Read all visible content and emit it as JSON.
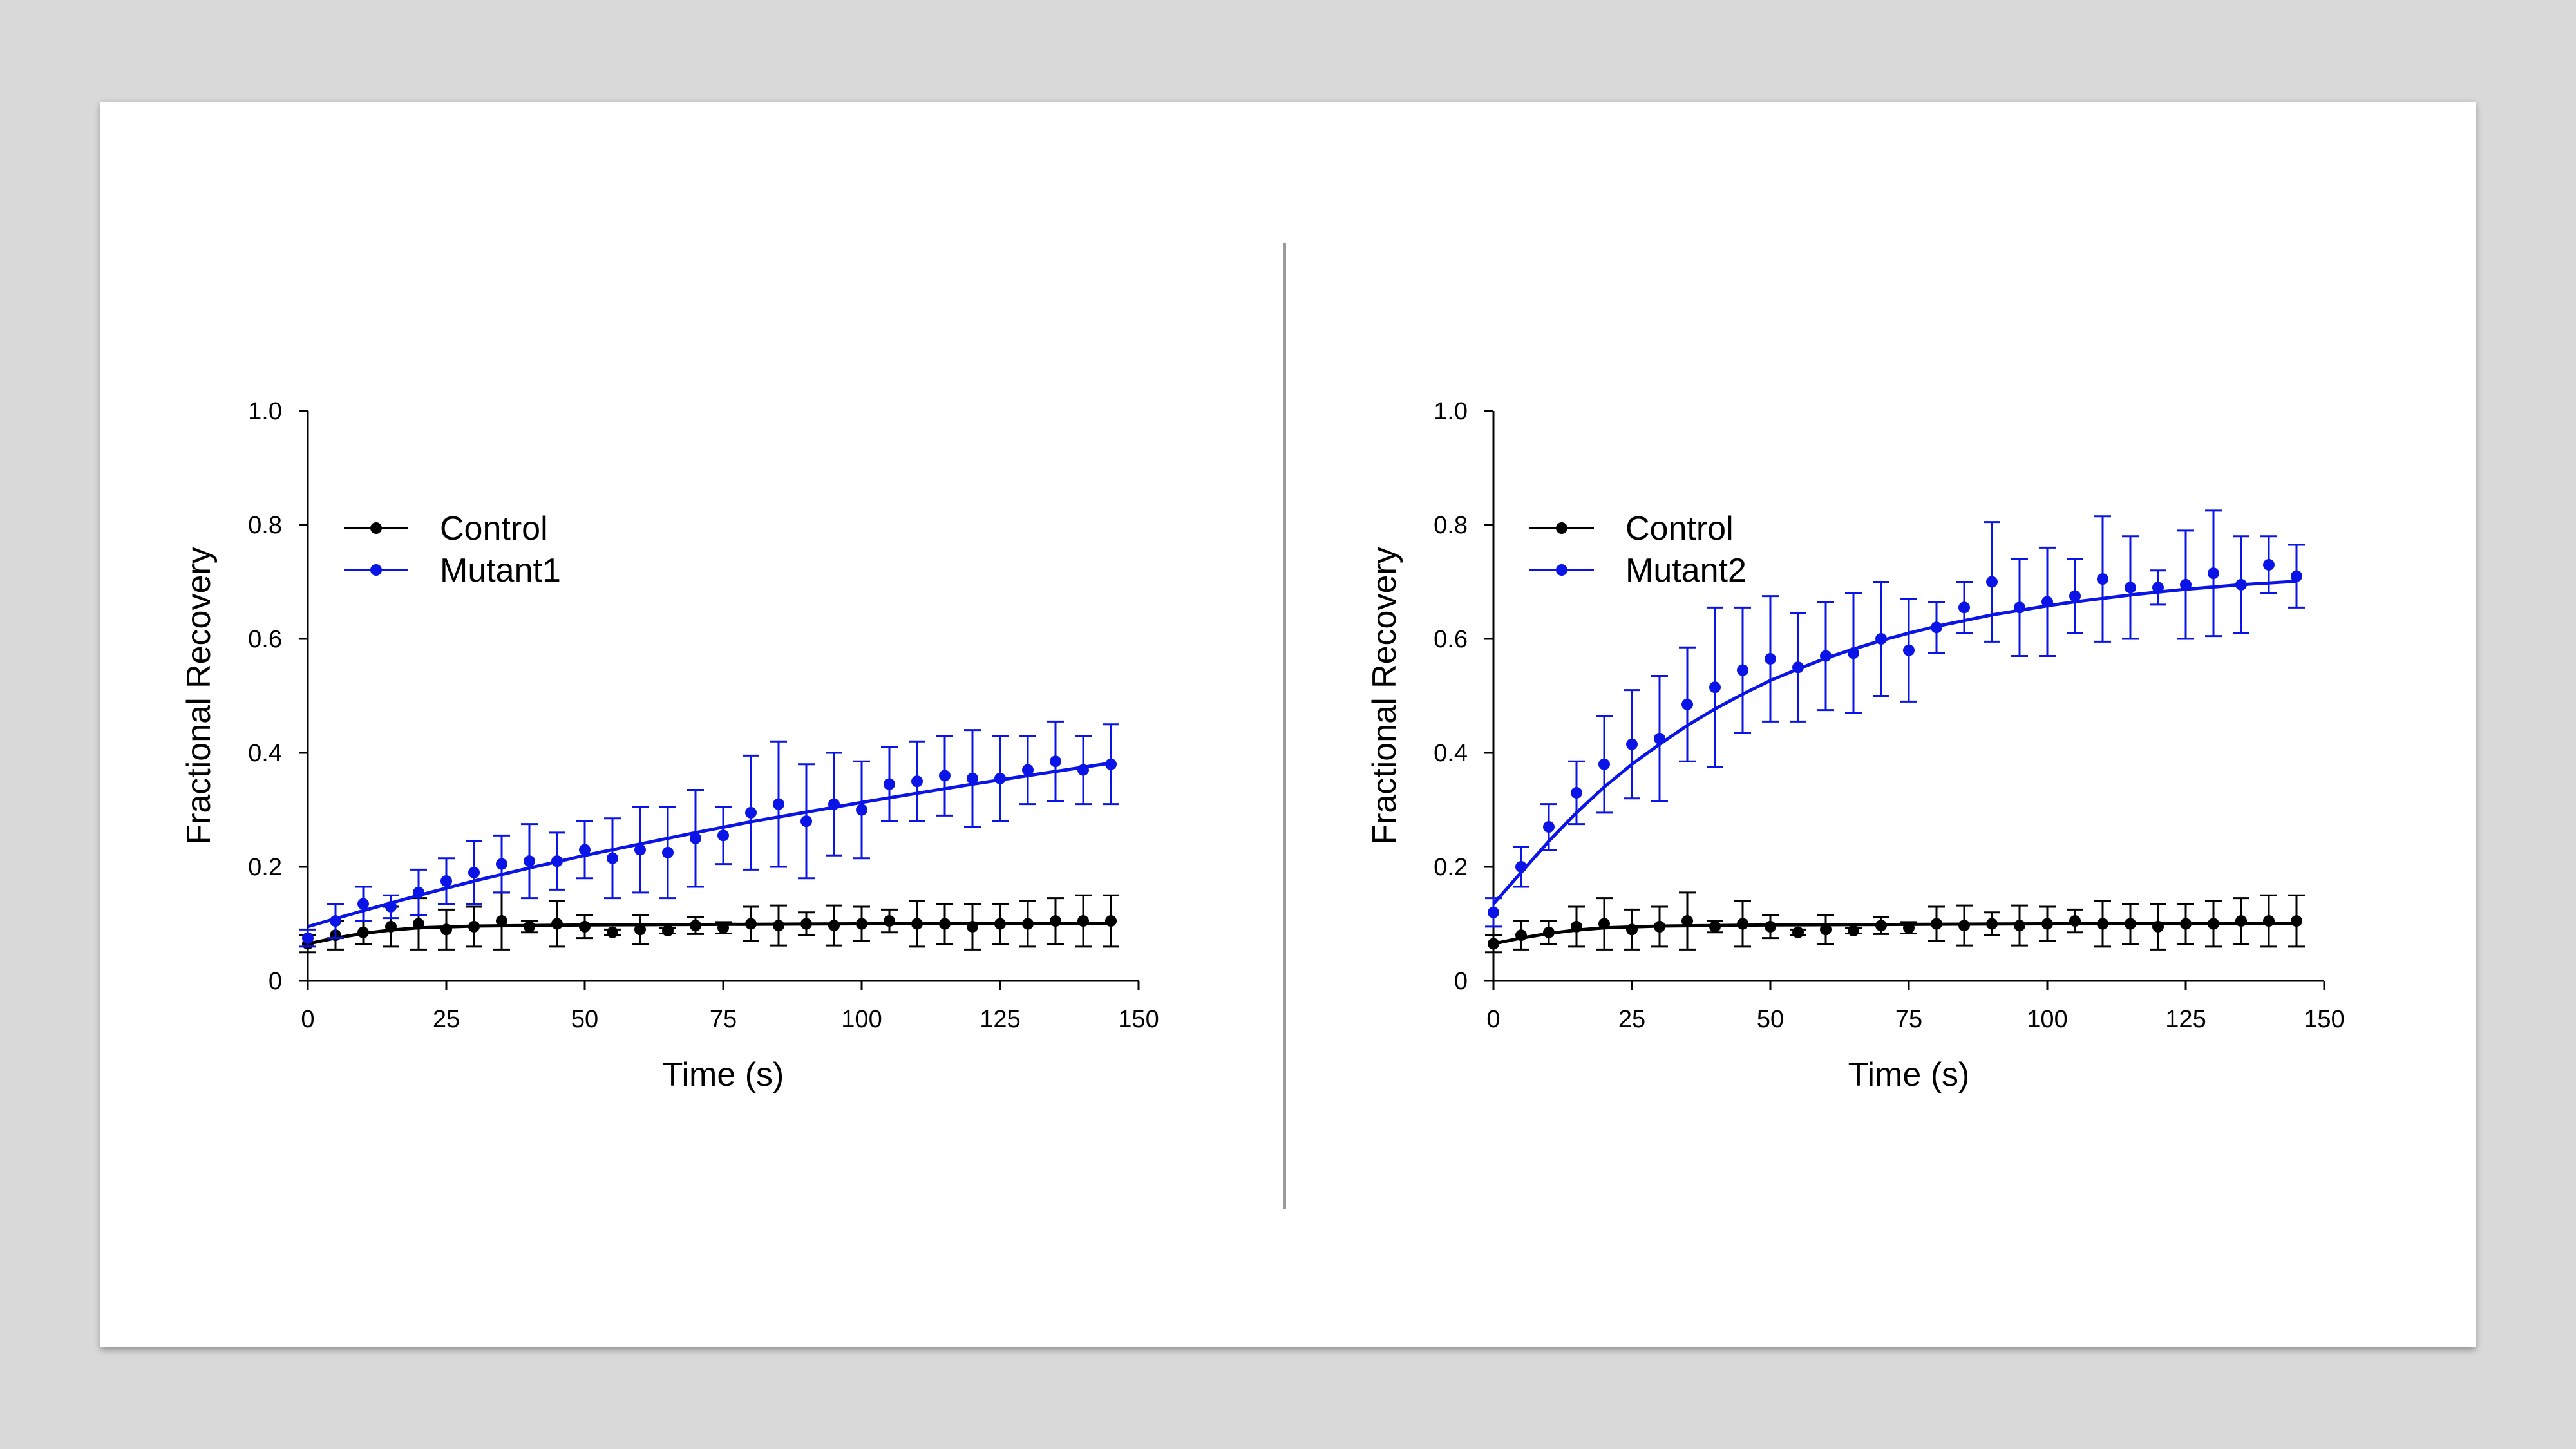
{
  "chart_data": [
    {
      "type": "scatter",
      "xlabel": "Time (s)",
      "ylabel": "Fractional Recovery",
      "xlim": [
        0,
        150
      ],
      "ylim": [
        0,
        1.0
      ],
      "xticks": [
        0,
        25,
        50,
        75,
        100,
        125,
        150
      ],
      "yticks": [
        "0",
        "0.2",
        "0.4",
        "0.6",
        "0.8",
        "1.0"
      ],
      "legend_position": "top-left",
      "x": [
        0,
        5,
        10,
        15,
        20,
        25,
        30,
        35,
        40,
        45,
        50,
        55,
        60,
        65,
        70,
        75,
        80,
        85,
        90,
        95,
        100,
        105,
        110,
        115,
        120,
        125,
        130,
        135,
        140,
        145
      ],
      "series": [
        {
          "name": "Control",
          "color": "#000000",
          "values": [
            0.065,
            0.08,
            0.085,
            0.095,
            0.1,
            0.09,
            0.095,
            0.105,
            0.095,
            0.1,
            0.095,
            0.085,
            0.09,
            0.088,
            0.097,
            0.093,
            0.1,
            0.097,
            0.1,
            0.097,
            0.1,
            0.105,
            0.1,
            0.1,
            0.095,
            0.1,
            0.1,
            0.105,
            0.105,
            0.105
          ],
          "errors": [
            0.015,
            0.025,
            0.02,
            0.035,
            0.045,
            0.035,
            0.035,
            0.05,
            0.01,
            0.04,
            0.02,
            0.005,
            0.025,
            0.005,
            0.015,
            0.01,
            0.03,
            0.035,
            0.02,
            0.035,
            0.03,
            0.02,
            0.04,
            0.035,
            0.04,
            0.035,
            0.04,
            0.04,
            0.045,
            0.045
          ],
          "fit": [
            [
              0,
              0.065
            ],
            [
              5,
              0.075
            ],
            [
              10,
              0.083
            ],
            [
              15,
              0.089
            ],
            [
              20,
              0.093
            ],
            [
              30,
              0.096
            ],
            [
              50,
              0.098
            ],
            [
              75,
              0.099
            ],
            [
              100,
              0.1
            ],
            [
              145,
              0.101
            ]
          ]
        },
        {
          "name": "Mutant1",
          "color": "#0a14e6",
          "values": [
            0.075,
            0.105,
            0.135,
            0.13,
            0.155,
            0.175,
            0.19,
            0.205,
            0.21,
            0.21,
            0.23,
            0.215,
            0.23,
            0.225,
            0.25,
            0.255,
            0.295,
            0.31,
            0.28,
            0.31,
            0.3,
            0.345,
            0.35,
            0.36,
            0.355,
            0.355,
            0.37,
            0.385,
            0.37,
            0.38
          ],
          "errors": [
            0.015,
            0.03,
            0.03,
            0.02,
            0.04,
            0.04,
            0.055,
            0.05,
            0.065,
            0.05,
            0.05,
            0.07,
            0.075,
            0.08,
            0.085,
            0.05,
            0.1,
            0.11,
            0.1,
            0.09,
            0.085,
            0.065,
            0.07,
            0.07,
            0.085,
            0.075,
            0.06,
            0.07,
            0.06,
            0.07
          ],
          "fit": [
            [
              0,
              0.095
            ],
            [
              10,
              0.123
            ],
            [
              20,
              0.15
            ],
            [
              30,
              0.175
            ],
            [
              40,
              0.198
            ],
            [
              50,
              0.22
            ],
            [
              60,
              0.24
            ],
            [
              70,
              0.26
            ],
            [
              80,
              0.279
            ],
            [
              90,
              0.296
            ],
            [
              100,
              0.313
            ],
            [
              110,
              0.329
            ],
            [
              120,
              0.345
            ],
            [
              130,
              0.36
            ],
            [
              145,
              0.382
            ]
          ]
        }
      ]
    },
    {
      "type": "scatter",
      "xlabel": "Time (s)",
      "ylabel": "Fractional Recovery",
      "xlim": [
        0,
        150
      ],
      "ylim": [
        0,
        1.0
      ],
      "xticks": [
        0,
        25,
        50,
        75,
        100,
        125,
        150
      ],
      "yticks": [
        "0",
        "0.2",
        "0.4",
        "0.6",
        "0.8",
        "1.0"
      ],
      "legend_position": "top-left",
      "x": [
        0,
        5,
        10,
        15,
        20,
        25,
        30,
        35,
        40,
        45,
        50,
        55,
        60,
        65,
        70,
        75,
        80,
        85,
        90,
        95,
        100,
        105,
        110,
        115,
        120,
        125,
        130,
        135,
        140,
        145
      ],
      "series": [
        {
          "name": "Control",
          "color": "#000000",
          "values": [
            0.065,
            0.08,
            0.085,
            0.095,
            0.1,
            0.09,
            0.095,
            0.105,
            0.095,
            0.1,
            0.095,
            0.085,
            0.09,
            0.088,
            0.097,
            0.093,
            0.1,
            0.097,
            0.1,
            0.097,
            0.1,
            0.105,
            0.1,
            0.1,
            0.095,
            0.1,
            0.1,
            0.105,
            0.105,
            0.105
          ],
          "errors": [
            0.015,
            0.025,
            0.02,
            0.035,
            0.045,
            0.035,
            0.035,
            0.05,
            0.01,
            0.04,
            0.02,
            0.005,
            0.025,
            0.005,
            0.015,
            0.01,
            0.03,
            0.035,
            0.02,
            0.035,
            0.03,
            0.02,
            0.04,
            0.035,
            0.04,
            0.035,
            0.04,
            0.04,
            0.045,
            0.045
          ],
          "fit": [
            [
              0,
              0.065
            ],
            [
              5,
              0.075
            ],
            [
              10,
              0.083
            ],
            [
              15,
              0.089
            ],
            [
              20,
              0.093
            ],
            [
              30,
              0.096
            ],
            [
              50,
              0.098
            ],
            [
              75,
              0.099
            ],
            [
              100,
              0.1
            ],
            [
              145,
              0.101
            ]
          ]
        },
        {
          "name": "Mutant2",
          "color": "#0a14e6",
          "values": [
            0.12,
            0.2,
            0.27,
            0.33,
            0.38,
            0.415,
            0.425,
            0.485,
            0.515,
            0.545,
            0.565,
            0.55,
            0.57,
            0.575,
            0.6,
            0.58,
            0.62,
            0.655,
            0.7,
            0.655,
            0.665,
            0.675,
            0.705,
            0.69,
            0.69,
            0.695,
            0.715,
            0.695,
            0.73,
            0.71
          ],
          "errors": [
            0.025,
            0.035,
            0.04,
            0.055,
            0.085,
            0.095,
            0.11,
            0.1,
            0.14,
            0.11,
            0.11,
            0.095,
            0.095,
            0.105,
            0.1,
            0.09,
            0.045,
            0.045,
            0.105,
            0.085,
            0.095,
            0.065,
            0.11,
            0.09,
            0.03,
            0.095,
            0.11,
            0.085,
            0.05,
            0.055
          ],
          "fit": [
            [
              0,
              0.135
            ],
            [
              5,
              0.19
            ],
            [
              10,
              0.245
            ],
            [
              15,
              0.295
            ],
            [
              20,
              0.34
            ],
            [
              25,
              0.38
            ],
            [
              30,
              0.415
            ],
            [
              35,
              0.448
            ],
            [
              40,
              0.477
            ],
            [
              45,
              0.503
            ],
            [
              50,
              0.527
            ],
            [
              55,
              0.547
            ],
            [
              60,
              0.566
            ],
            [
              65,
              0.582
            ],
            [
              70,
              0.597
            ],
            [
              75,
              0.61
            ],
            [
              80,
              0.622
            ],
            [
              85,
              0.632
            ],
            [
              90,
              0.642
            ],
            [
              95,
              0.65
            ],
            [
              100,
              0.658
            ],
            [
              105,
              0.665
            ],
            [
              110,
              0.671
            ],
            [
              115,
              0.677
            ],
            [
              120,
              0.682
            ],
            [
              125,
              0.687
            ],
            [
              130,
              0.691
            ],
            [
              135,
              0.695
            ],
            [
              140,
              0.698
            ],
            [
              145,
              0.701
            ]
          ]
        }
      ]
    }
  ]
}
